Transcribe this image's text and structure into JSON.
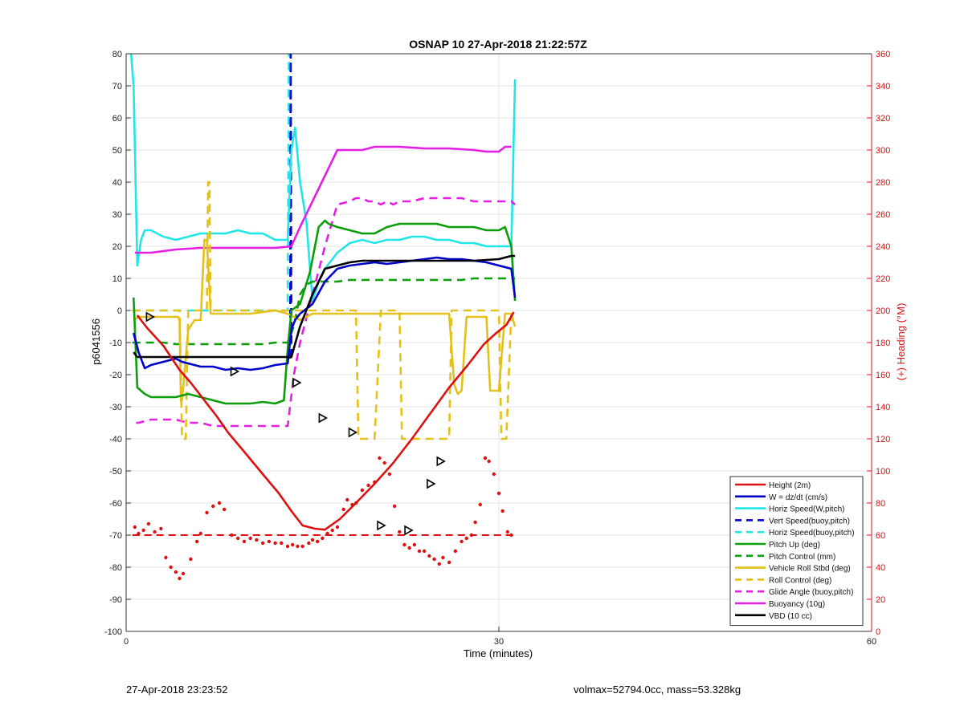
{
  "footer": {
    "timestamp": "27-Apr-2018 23:23:52",
    "info": "volmax=52794.0cc, mass=53.328kg"
  },
  "chart_data": {
    "type": "line",
    "title": "OSNAP 10 27-Apr-2018 21:22:57Z",
    "xlabel": "Time (minutes)",
    "ylabel": "p6041556",
    "y2label": "(+) Heading (°M)",
    "xlim": [
      0,
      60
    ],
    "ylim": [
      -100,
      80
    ],
    "y2lim": [
      0,
      360
    ],
    "xticks": [
      "0",
      "30",
      "60"
    ],
    "yticks": [
      "80",
      "70",
      "60",
      "50",
      "40",
      "30",
      "20",
      "10",
      "0",
      "-10",
      "-20",
      "-30",
      "-40",
      "-50",
      "-60",
      "-70",
      "-80",
      "-90",
      "-100"
    ],
    "y2ticks": [
      "360",
      "340",
      "320",
      "300",
      "280",
      "260",
      "240",
      "220",
      "200",
      "180",
      "160",
      "140",
      "120",
      "100",
      "80",
      "60",
      "40",
      "20",
      "0"
    ],
    "grid": true,
    "legend_position": "bottom-right",
    "colors": {
      "red": "#dd1111",
      "blue": "#0000cc",
      "cyan": "#22e5e5",
      "green": "#0a9e0a",
      "yellow": "#e3c11a",
      "magenta": "#e51ee5",
      "black": "#000000",
      "axis_right": "#dd1111"
    },
    "series": [
      {
        "name": "Height (2m)",
        "color": "#dd1111",
        "dash": false,
        "markers": "triangle",
        "x": [
          0.9,
          1.7,
          3,
          4.3,
          5.2,
          6.3,
          7.3,
          8.2,
          9.5,
          11,
          12.3,
          13.3,
          14.2,
          15.2,
          16.0,
          17.2,
          18.5,
          20,
          21.5,
          23,
          24.5,
          26,
          27.5,
          28.8,
          29.8,
          30.6,
          31.2
        ],
        "y": [
          -1.5,
          -5.5,
          -11,
          -18.5,
          -22.5,
          -28,
          -33,
          -38,
          -44,
          -51,
          -57,
          -62.5,
          -67,
          -68,
          -68.3,
          -65,
          -60,
          -54,
          -47.5,
          -40,
          -32,
          -24,
          -17,
          -10.5,
          -7,
          -4.5,
          -0.5
        ],
        "marker_x": [
          1.9,
          8.7,
          13.7,
          15.8,
          18.2,
          20.5,
          22.7,
          24.5,
          25.3
        ],
        "marker_y": [
          -2,
          -19,
          -22.5,
          -33.5,
          -38,
          -67,
          -68.5,
          -54,
          -47
        ]
      },
      {
        "name": "W = dz/dt (cm/s)",
        "color": "#0000cc",
        "dash": false,
        "x": [
          0.6,
          1,
          1.5,
          2,
          3,
          4,
          4.5,
          5,
          6,
          7,
          8,
          9,
          10,
          11,
          12,
          13,
          13.3,
          13.6,
          14,
          15,
          16,
          17,
          18,
          19,
          20,
          21,
          22,
          23,
          24,
          25,
          26,
          27,
          28,
          29,
          30,
          31,
          31.3
        ],
        "y": [
          -7,
          -13,
          -18,
          -17,
          -16,
          -15,
          -16,
          -16.5,
          -17.5,
          -17.5,
          -18.5,
          -18,
          -18.5,
          -18,
          -17,
          -16.5,
          -6,
          -3,
          -1,
          2,
          9,
          13,
          14,
          14.5,
          15,
          14.5,
          15,
          15.5,
          16,
          16.5,
          16,
          16,
          15.5,
          15,
          14,
          13,
          4
        ]
      },
      {
        "name": "Horiz Speed(W,pitch)",
        "color": "#22e5e5",
        "dash": false,
        "x": [
          0.4,
          0.6,
          0.9,
          1.2,
          1.5,
          2,
          3,
          4,
          5,
          6,
          7,
          8,
          9,
          10,
          11,
          12,
          13,
          13.3,
          13.6,
          14,
          14.5,
          15,
          15.5,
          16,
          17,
          18,
          19,
          20,
          21,
          22,
          23,
          24,
          25,
          26,
          27,
          28,
          29,
          30,
          30.6,
          31,
          31.3
        ],
        "y": [
          80,
          70,
          14,
          22,
          25,
          25,
          23,
          22,
          23,
          24,
          24,
          24,
          25,
          24,
          24,
          22,
          22,
          50,
          57,
          40,
          28,
          3,
          9,
          13,
          18,
          21,
          22,
          21,
          22,
          22,
          23,
          23,
          22,
          22,
          21,
          21,
          20,
          20,
          20,
          20,
          72
        ]
      },
      {
        "name": "Vert Speed(buoy,pitch)",
        "color": "#0000cc",
        "dash": true,
        "x": [
          13.2,
          13.25,
          13.3
        ],
        "y": [
          -15,
          80,
          -15
        ]
      },
      {
        "name": "Horiz Speed(buoy,pitch)",
        "color": "#22e5e5",
        "dash": true,
        "x": [
          0.5,
          12.9,
          13.0,
          13.1,
          13.2,
          13.3
        ],
        "y": [
          0,
          0,
          0,
          80,
          80,
          -15
        ]
      },
      {
        "name": "Pitch Up (deg)",
        "color": "#0a9e0a",
        "dash": false,
        "x": [
          0.6,
          0.9,
          1.5,
          2,
          3,
          4,
          5,
          6,
          7,
          8,
          9,
          10,
          11,
          12,
          12.7,
          13,
          13.3,
          14,
          14.8,
          15.5,
          16,
          16.3,
          17,
          18,
          19,
          20,
          21,
          22,
          23,
          24,
          25,
          26,
          27,
          28,
          29,
          30,
          30.5,
          31,
          31.3
        ],
        "y": [
          4,
          -24,
          -26,
          -27,
          -27,
          -27,
          -26,
          -27,
          -28,
          -29,
          -29,
          -29,
          -28.5,
          -29,
          -28,
          -12,
          0,
          2,
          12,
          26,
          28,
          27,
          26,
          25,
          24,
          24,
          26,
          27,
          27,
          27,
          27,
          26,
          26,
          26,
          25,
          25,
          26,
          20,
          3
        ]
      },
      {
        "name": "Pitch Control (mm)",
        "color": "#0a9e0a",
        "dash": true,
        "x": [
          0.5,
          1,
          2,
          3,
          4,
          5,
          6,
          7,
          8,
          9,
          10,
          11,
          12,
          13,
          13.5,
          14,
          14.5,
          15,
          16,
          17,
          18,
          19,
          20,
          21,
          22,
          23,
          24,
          25,
          26,
          27,
          28,
          29,
          30,
          31,
          31.3
        ],
        "y": [
          -10,
          -10,
          -10,
          -10,
          -10.5,
          -10.5,
          -10.5,
          -10.5,
          -10.5,
          -10.5,
          -10.5,
          -10.5,
          -10,
          -10,
          -5,
          5,
          8,
          9,
          9,
          9,
          9.5,
          9.5,
          9.5,
          9.5,
          9.5,
          9.5,
          9.5,
          9.5,
          9.5,
          9.5,
          10,
          10,
          10,
          10,
          10
        ]
      },
      {
        "name": "Vehicle Roll Stbd (deg)",
        "color": "#e3c11a",
        "dash": false,
        "x": [
          0.6,
          1,
          2,
          3,
          4.2,
          4.3,
          4.4,
          4.5,
          5,
          5.5,
          6.0,
          6.3,
          6.5,
          6.8,
          7.0,
          7.5,
          9,
          10,
          12,
          13,
          13.5,
          14,
          14.5,
          15,
          16,
          17,
          18,
          19,
          20,
          21,
          22,
          23,
          24,
          25,
          26,
          26.4,
          26.7,
          27,
          27.4,
          27.7,
          28,
          28.5,
          29,
          29.3,
          29.6,
          30,
          30.5,
          31,
          31.3
        ],
        "y": [
          -3,
          -2,
          -2,
          -2,
          -2,
          -3,
          -28,
          -28,
          -6,
          -3,
          -3,
          22,
          22,
          -1,
          -1,
          -1,
          -1,
          -1,
          0,
          -1,
          -2,
          -3,
          -2,
          -1,
          -1,
          -1,
          -1,
          -1,
          -1,
          -1,
          -1,
          -1,
          -1,
          -1,
          -1,
          -23,
          -26,
          -25,
          -2,
          -2,
          -2,
          -2,
          -2,
          -25,
          -25,
          -25,
          -1,
          -1,
          -5
        ]
      },
      {
        "name": "Roll Control (deg)",
        "color": "#e3c11a",
        "dash": true,
        "x": [
          0.5,
          4.3,
          4.5,
          4.6,
          4.7,
          4.8,
          5,
          5.3,
          5.4,
          5.5,
          6.5,
          6.6,
          6.7,
          6.8,
          7,
          13,
          13.2,
          14,
          15,
          16,
          17,
          18,
          18.5,
          18.7,
          19,
          20,
          20.5,
          21,
          21.5,
          22,
          22.2,
          25,
          26,
          26.2,
          27.3,
          27.5,
          28,
          28.5,
          30,
          30.2,
          30.4,
          30.6,
          31,
          31.2
        ],
        "y": [
          0,
          0,
          -40,
          -40,
          -40,
          -40,
          0,
          0,
          0,
          0,
          0,
          40,
          40,
          0,
          0,
          0,
          0,
          0,
          0,
          0,
          0,
          0,
          0,
          -40,
          -40,
          -40,
          0,
          0,
          0,
          0,
          -40,
          -40,
          -40,
          0,
          0,
          0,
          0,
          0,
          0,
          -40,
          -40,
          -40,
          0,
          0
        ]
      },
      {
        "name": "Glide Angle (buoy,pitch)",
        "color": "#e51ee5",
        "dash": true,
        "x": [
          0.8,
          1,
          2,
          3,
          4,
          5,
          6,
          7,
          8,
          9,
          10,
          11,
          12,
          13,
          13.5,
          14,
          15,
          16,
          17,
          18,
          18.5,
          19,
          19.5,
          20,
          20.5,
          21,
          21.5,
          22,
          23,
          24,
          25,
          26,
          27,
          28,
          29,
          30,
          30.5,
          31,
          31.3
        ],
        "y": [
          -35,
          -35,
          -34,
          -34,
          -34,
          -35,
          -35,
          -36,
          -36,
          -36,
          -36,
          -36,
          -36,
          -36,
          -20,
          -10,
          5,
          20,
          33,
          34,
          35,
          35,
          34,
          34,
          33,
          34,
          33,
          34,
          34,
          35,
          35,
          35,
          35,
          34,
          34,
          34,
          34,
          34,
          33
        ]
      },
      {
        "name": "Buoyancy (10g)",
        "color": "#e51ee5",
        "dash": false,
        "x": [
          0.7,
          2,
          4,
          6,
          8,
          10,
          12,
          13.3,
          14,
          15,
          16,
          17,
          18,
          19,
          20,
          22,
          24,
          26,
          28,
          29,
          30,
          30.5,
          31
        ],
        "y": [
          18,
          18,
          19,
          19.5,
          19.5,
          19.5,
          19.5,
          20,
          26,
          34,
          42,
          50,
          50,
          50,
          51,
          51,
          50.5,
          50.5,
          50,
          49.5,
          49.5,
          51,
          51
        ]
      },
      {
        "name": "VBD (10 cc)",
        "color": "#000000",
        "dash": false,
        "x": [
          0.6,
          0.9,
          1,
          2,
          4,
          6,
          8,
          10,
          12,
          13.3,
          14,
          15,
          16,
          17,
          18,
          19,
          20,
          22,
          24,
          26,
          28,
          30,
          31,
          31.3
        ],
        "y": [
          -13,
          -14.5,
          -14.5,
          -14.5,
          -14.5,
          -14.5,
          -14.5,
          -14.5,
          -14.5,
          -14.5,
          -5,
          5,
          13,
          14,
          15,
          15.5,
          15.5,
          15.5,
          15.5,
          15.5,
          15.5,
          16,
          17,
          17
        ]
      }
    ],
    "reference_line": {
      "color": "#dd1111",
      "dash": true,
      "y2": 60,
      "x": [
        0.5,
        31.2
      ]
    },
    "heading_points": {
      "color": "#dd1111",
      "axis": "right",
      "x": [
        0.7,
        1.0,
        1.4,
        1.8,
        2.3,
        2.8,
        3.2,
        3.6,
        4.0,
        4.3,
        4.6,
        5.2,
        5.7,
        6.0,
        6.5,
        7.0,
        7.5,
        7.9,
        8.5,
        9.0,
        9.5,
        10.0,
        10.5,
        11.0,
        11.5,
        12.0,
        12.5,
        13.0,
        13.4,
        13.8,
        14.2,
        14.7,
        15.0,
        15.4,
        15.8,
        16.2,
        16.6,
        17.0,
        17.5,
        17.8,
        18.2,
        18.5,
        19.0,
        19.5,
        20.0,
        20.4,
        20.8,
        21.2,
        21.6,
        22.0,
        22.4,
        22.8,
        23.2,
        23.6,
        24.0,
        24.4,
        24.8,
        25.2,
        25.5,
        26.0,
        26.5,
        27.0,
        27.4,
        27.8,
        28.1,
        28.5,
        28.9,
        29.2,
        29.6,
        30.0,
        30.3,
        30.7,
        31.0
      ],
      "y": [
        65,
        61,
        63,
        67,
        62,
        64,
        46,
        40,
        37,
        33,
        36,
        45,
        56,
        61,
        74,
        78,
        80,
        76,
        60,
        58,
        56,
        58,
        57,
        55,
        56,
        55,
        55,
        53,
        54,
        53,
        53,
        55,
        57,
        56,
        58,
        61,
        63,
        65,
        76,
        82,
        79,
        80,
        88,
        91,
        93,
        108,
        105,
        98,
        78,
        62,
        54,
        52,
        54,
        50,
        50,
        47,
        45,
        42,
        46,
        43,
        50,
        56,
        58,
        60,
        68,
        79,
        108,
        106,
        98,
        86,
        75,
        62,
        60
      ]
    }
  }
}
